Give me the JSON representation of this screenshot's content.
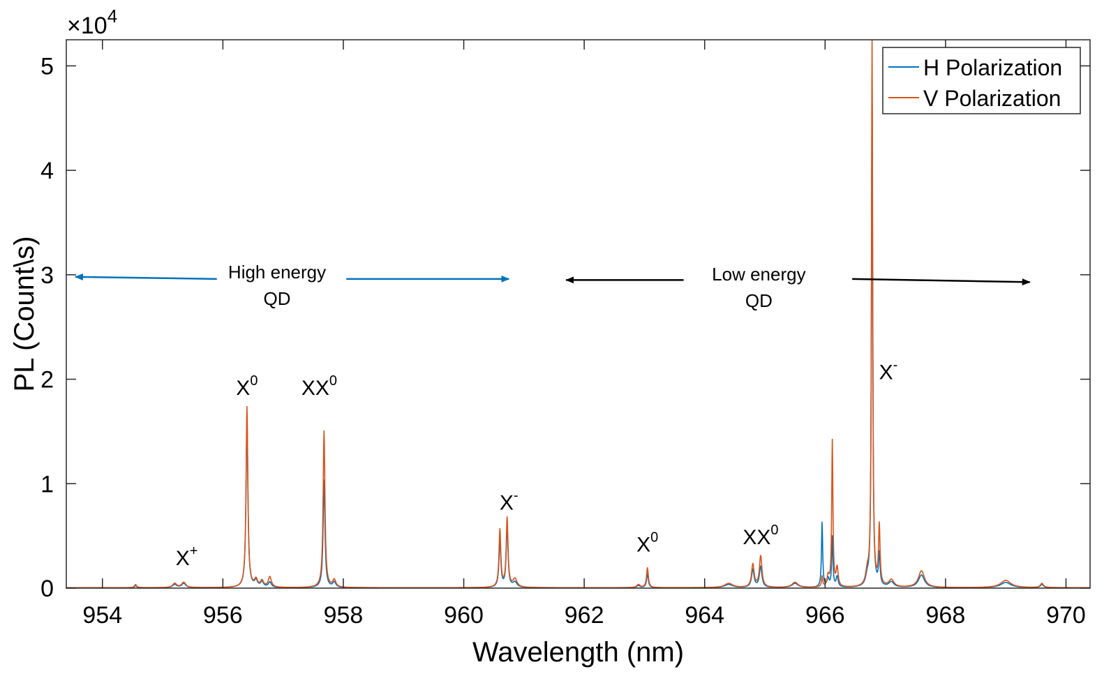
{
  "chart_data": {
    "type": "line",
    "title": "",
    "xlabel": "Wavelength (nm)",
    "ylabel": "PL (Count\\s)",
    "xlim": [
      953.4,
      970.4
    ],
    "ylim": [
      0,
      5.25
    ],
    "y_multiplier_label": {
      "base": "×10",
      "exponent": "4"
    },
    "x_ticks": [
      954,
      956,
      958,
      960,
      962,
      964,
      966,
      968,
      970
    ],
    "y_ticks": [
      0,
      1,
      2,
      3,
      4,
      5
    ],
    "x_tick_labels": [
      "954",
      "956",
      "958",
      "960",
      "962",
      "964",
      "966",
      "968",
      "970"
    ],
    "y_tick_labels": [
      "0",
      "1",
      "2",
      "3",
      "4",
      "5"
    ],
    "legend": {
      "position": "top-right",
      "entries": [
        {
          "label": "H Polarization",
          "color": "#0072BD"
        },
        {
          "label": "V Polarization",
          "color": "#D95319"
        }
      ]
    },
    "series": [
      {
        "name": "H Polarization",
        "color": "#0072BD",
        "peaks": [
          {
            "x": 954.55,
            "y": 0.02,
            "w": 0.02
          },
          {
            "x": 955.2,
            "y": 0.03,
            "w": 0.04
          },
          {
            "x": 955.35,
            "y": 0.04,
            "w": 0.04
          },
          {
            "x": 956.4,
            "y": 1.63,
            "w": 0.018
          },
          {
            "x": 956.55,
            "y": 0.06,
            "w": 0.03
          },
          {
            "x": 956.65,
            "y": 0.05,
            "w": 0.03
          },
          {
            "x": 956.78,
            "y": 0.05,
            "w": 0.03
          },
          {
            "x": 957.68,
            "y": 1.03,
            "w": 0.018
          },
          {
            "x": 957.85,
            "y": 0.05,
            "w": 0.03
          },
          {
            "x": 960.6,
            "y": 0.45,
            "w": 0.018
          },
          {
            "x": 960.72,
            "y": 0.58,
            "w": 0.018
          },
          {
            "x": 960.85,
            "y": 0.05,
            "w": 0.04
          },
          {
            "x": 962.9,
            "y": 0.02,
            "w": 0.03
          },
          {
            "x": 963.05,
            "y": 0.13,
            "w": 0.018
          },
          {
            "x": 964.4,
            "y": 0.03,
            "w": 0.08
          },
          {
            "x": 964.8,
            "y": 0.17,
            "w": 0.025
          },
          {
            "x": 964.93,
            "y": 0.2,
            "w": 0.025
          },
          {
            "x": 965.5,
            "y": 0.04,
            "w": 0.06
          },
          {
            "x": 965.95,
            "y": 0.62,
            "w": 0.012
          },
          {
            "x": 966.05,
            "y": 0.08,
            "w": 0.02
          },
          {
            "x": 966.12,
            "y": 0.48,
            "w": 0.012
          },
          {
            "x": 966.2,
            "y": 0.1,
            "w": 0.02
          },
          {
            "x": 966.7,
            "y": 0.08,
            "w": 0.03
          },
          {
            "x": 966.78,
            "y": 4.9,
            "w": 0.012
          },
          {
            "x": 966.9,
            "y": 0.3,
            "w": 0.015
          },
          {
            "x": 967.1,
            "y": 0.05,
            "w": 0.05
          },
          {
            "x": 967.6,
            "y": 0.12,
            "w": 0.06
          },
          {
            "x": 969.0,
            "y": 0.05,
            "w": 0.1
          },
          {
            "x": 969.6,
            "y": 0.03,
            "w": 0.03
          }
        ]
      },
      {
        "name": "V Polarization",
        "color": "#D95319",
        "peaks": [
          {
            "x": 954.55,
            "y": 0.03,
            "w": 0.02
          },
          {
            "x": 955.2,
            "y": 0.04,
            "w": 0.04
          },
          {
            "x": 955.35,
            "y": 0.05,
            "w": 0.04
          },
          {
            "x": 956.4,
            "y": 1.73,
            "w": 0.018
          },
          {
            "x": 956.55,
            "y": 0.07,
            "w": 0.03
          },
          {
            "x": 956.65,
            "y": 0.06,
            "w": 0.03
          },
          {
            "x": 956.78,
            "y": 0.1,
            "w": 0.03
          },
          {
            "x": 957.68,
            "y": 1.5,
            "w": 0.018
          },
          {
            "x": 957.85,
            "y": 0.07,
            "w": 0.03
          },
          {
            "x": 960.6,
            "y": 0.55,
            "w": 0.018
          },
          {
            "x": 960.72,
            "y": 0.66,
            "w": 0.018
          },
          {
            "x": 960.85,
            "y": 0.08,
            "w": 0.04
          },
          {
            "x": 962.9,
            "y": 0.03,
            "w": 0.03
          },
          {
            "x": 963.05,
            "y": 0.19,
            "w": 0.018
          },
          {
            "x": 964.4,
            "y": 0.04,
            "w": 0.08
          },
          {
            "x": 964.8,
            "y": 0.22,
            "w": 0.025
          },
          {
            "x": 964.93,
            "y": 0.3,
            "w": 0.025
          },
          {
            "x": 965.5,
            "y": 0.05,
            "w": 0.06
          },
          {
            "x": 965.95,
            "y": 0.1,
            "w": 0.012
          },
          {
            "x": 966.05,
            "y": 0.1,
            "w": 0.02
          },
          {
            "x": 966.12,
            "y": 1.4,
            "w": 0.012
          },
          {
            "x": 966.2,
            "y": 0.18,
            "w": 0.02
          },
          {
            "x": 966.7,
            "y": 0.12,
            "w": 0.03
          },
          {
            "x": 966.78,
            "y": 5.25,
            "w": 0.012
          },
          {
            "x": 966.9,
            "y": 0.57,
            "w": 0.015
          },
          {
            "x": 967.1,
            "y": 0.07,
            "w": 0.05
          },
          {
            "x": 967.6,
            "y": 0.16,
            "w": 0.06
          },
          {
            "x": 969.0,
            "y": 0.07,
            "w": 0.1
          },
          {
            "x": 969.6,
            "y": 0.04,
            "w": 0.03
          }
        ]
      }
    ],
    "annotations": [
      {
        "id": "xplus",
        "base": "X",
        "sup": "+",
        "x": 955.4,
        "y": 0.22
      },
      {
        "id": "x0-high",
        "base": "X",
        "sup": "0",
        "x": 956.4,
        "y": 1.85
      },
      {
        "id": "xx0-high",
        "base": "XX",
        "sup": "0",
        "x": 957.6,
        "y": 1.85
      },
      {
        "id": "xminus-high",
        "base": "X",
        "sup": "-",
        "x": 960.75,
        "y": 0.75
      },
      {
        "id": "x0-low",
        "base": "X",
        "sup": "0",
        "x": 963.05,
        "y": 0.35
      },
      {
        "id": "xx0-low",
        "base": "XX",
        "sup": "0",
        "x": 964.93,
        "y": 0.42
      },
      {
        "id": "xminus-low",
        "base": "X",
        "sup": "-",
        "x": 967.05,
        "y": 2.0
      }
    ],
    "regions": [
      {
        "id": "high-energy",
        "line1": "High energy",
        "line2": "QD",
        "color": "#0072BD",
        "text_x": 956.9,
        "text_y": 2.94,
        "arrow_left": {
          "from_x": 955.9,
          "to_x": 953.55,
          "y": 2.96,
          "to_y": 2.98
        },
        "arrow_right": {
          "from_x": 958.05,
          "to_x": 960.75,
          "y": 2.96
        }
      },
      {
        "id": "low-energy",
        "line1": "Low energy",
        "line2": "QD",
        "color": "#000000",
        "text_x": 964.9,
        "text_y": 2.92,
        "arrow_left": {
          "from_x": 963.65,
          "to_x": 961.7,
          "y": 2.95
        },
        "arrow_right": {
          "from_x": 966.45,
          "to_x": 969.4,
          "y": 2.95,
          "from_y": 2.96,
          "to_y": 2.93
        }
      }
    ]
  }
}
